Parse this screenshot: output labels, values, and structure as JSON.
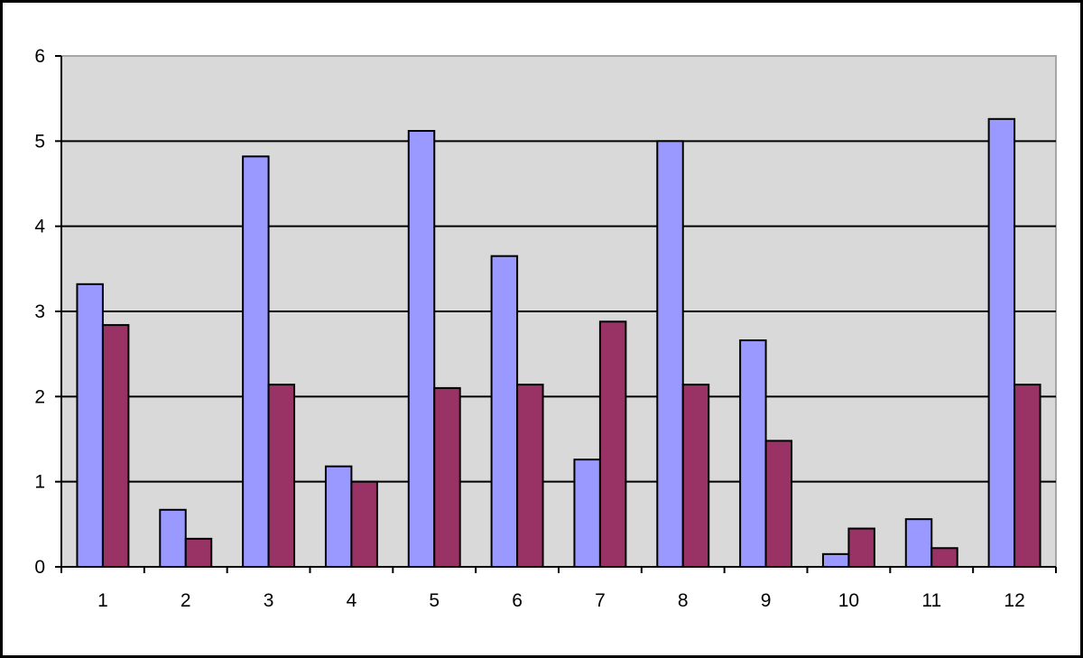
{
  "chart_data": {
    "type": "bar",
    "categories": [
      "1",
      "2",
      "3",
      "4",
      "5",
      "6",
      "7",
      "8",
      "9",
      "10",
      "11",
      "12"
    ],
    "series": [
      {
        "values": [
          3.32,
          0.67,
          4.82,
          1.18,
          5.12,
          3.65,
          1.26,
          5.0,
          2.66,
          0.15,
          0.56,
          5.26
        ]
      },
      {
        "values": [
          2.84,
          0.33,
          2.14,
          1.0,
          2.1,
          2.14,
          2.88,
          2.14,
          1.48,
          0.45,
          0.22,
          2.14
        ]
      }
    ],
    "yticks": [
      "0",
      "1",
      "2",
      "3",
      "4",
      "5",
      "6"
    ],
    "ylim": [
      0,
      6
    ],
    "title": "",
    "xlabel": "",
    "ylabel": "",
    "grid": true,
    "legend": "none",
    "colors": {
      "series_1": "#9999ff",
      "series_2": "#993366",
      "plot_background": "#d9d9d9",
      "gridline": "#000000",
      "frame": "#000000"
    }
  }
}
